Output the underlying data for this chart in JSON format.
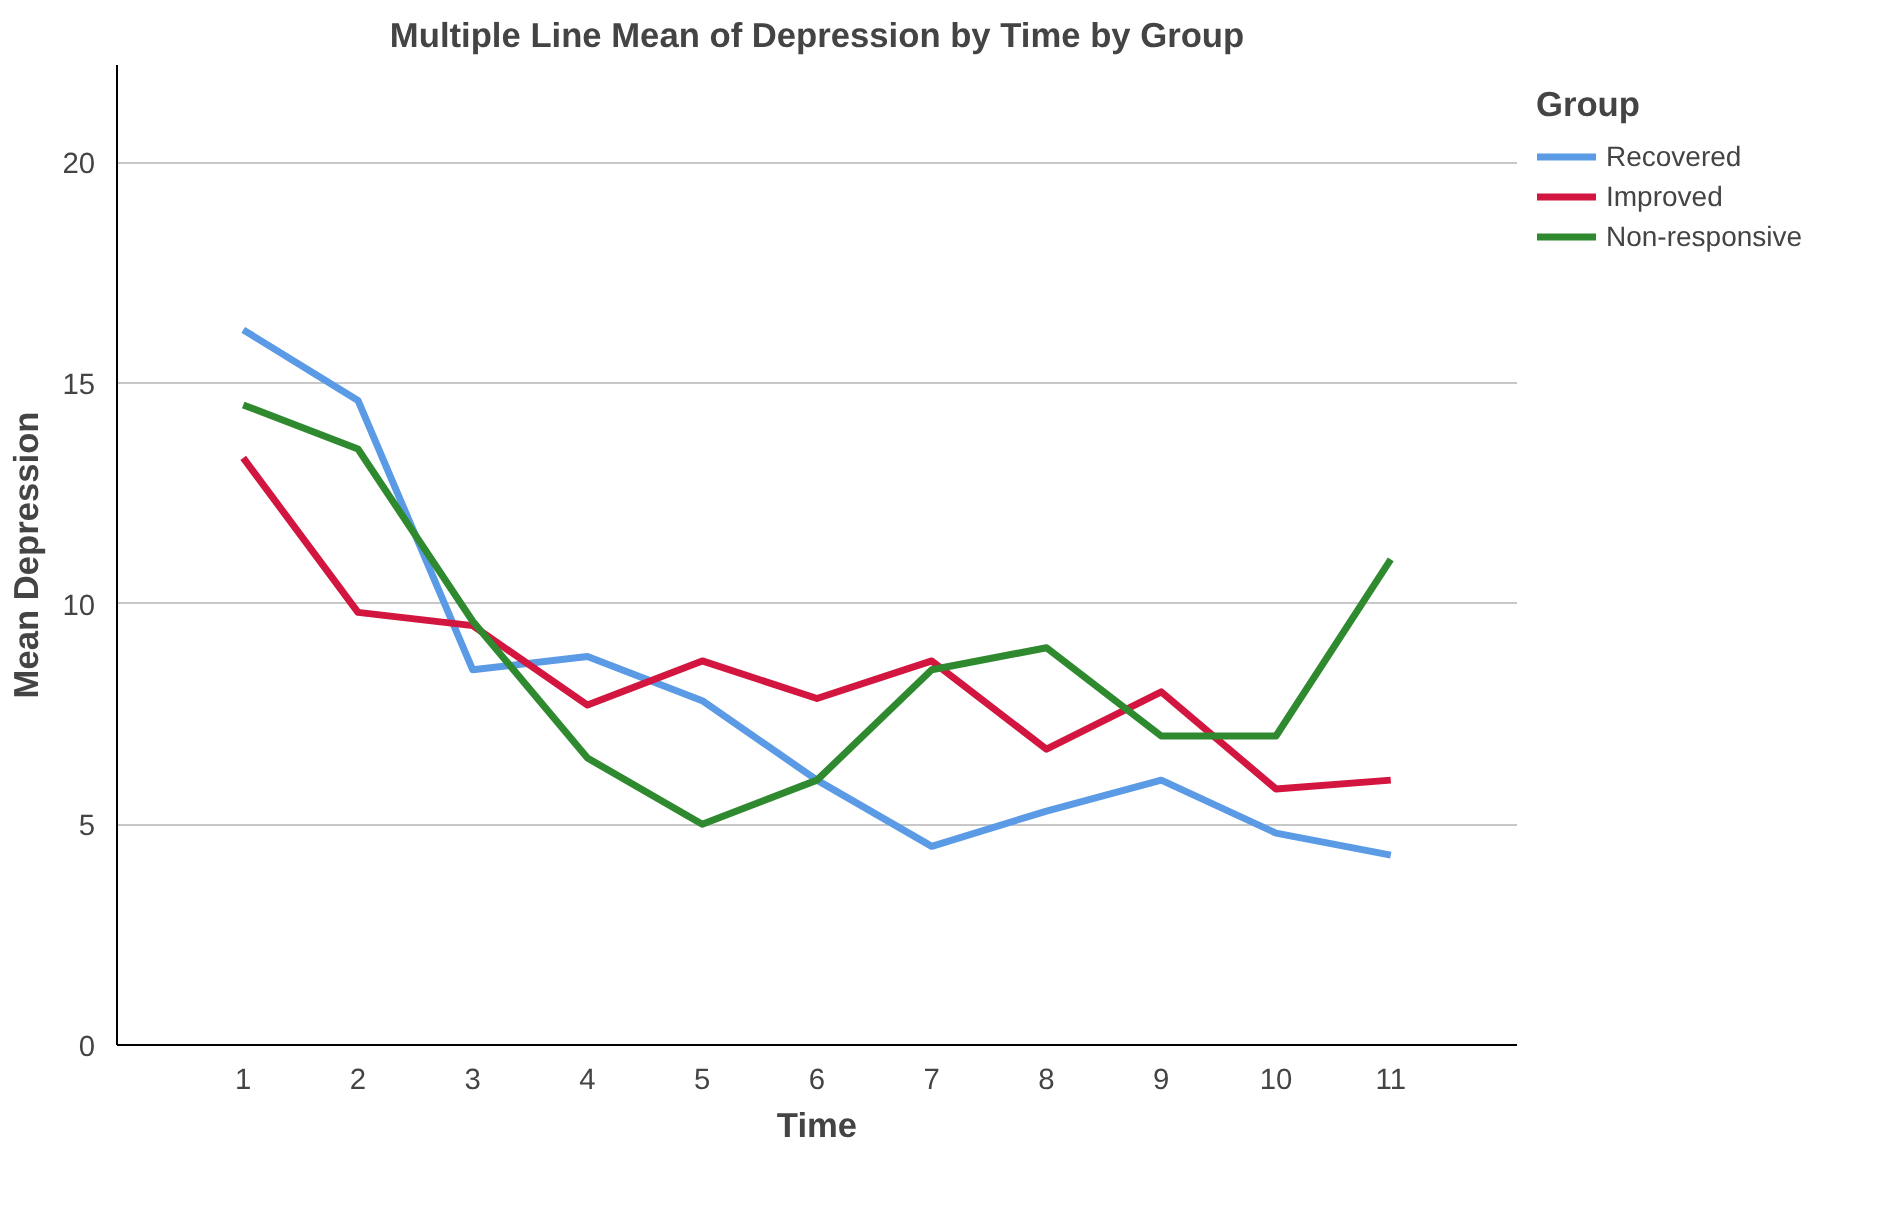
{
  "chart_data": {
    "type": "line",
    "title": "Multiple Line Mean of Depression by Time by Group",
    "xlabel": "Time",
    "ylabel": "Mean Depression",
    "legend_title": "Group",
    "x": [
      1,
      2,
      3,
      4,
      5,
      6,
      7,
      8,
      9,
      10,
      11
    ],
    "series": [
      {
        "name": "Recovered",
        "color": "#5b9be6",
        "values": [
          16.2,
          14.6,
          8.5,
          8.8,
          7.8,
          6.0,
          4.5,
          5.3,
          6.0,
          4.8,
          4.3
        ]
      },
      {
        "name": "Improved",
        "color": "#d2163f",
        "values": [
          13.3,
          9.8,
          9.5,
          7.7,
          8.7,
          7.85,
          8.7,
          6.7,
          8.0,
          5.8,
          6.0
        ]
      },
      {
        "name": "Non-responsive",
        "color": "#2f8a2f",
        "values": [
          14.5,
          13.5,
          9.6,
          6.5,
          5.0,
          6.0,
          8.5,
          9.0,
          7.0,
          7.0,
          11.0
        ]
      }
    ],
    "xlim": [
      -0.1,
      12.1
    ],
    "xticks": [
      1,
      2,
      3,
      4,
      5,
      6,
      7,
      8,
      9,
      10,
      11
    ],
    "ylim": [
      0,
      22.2
    ],
    "yticks": [
      0,
      5,
      10,
      15,
      20
    ],
    "grid": "y",
    "legend": "top right",
    "marker": "none",
    "line_style": "solid"
  }
}
